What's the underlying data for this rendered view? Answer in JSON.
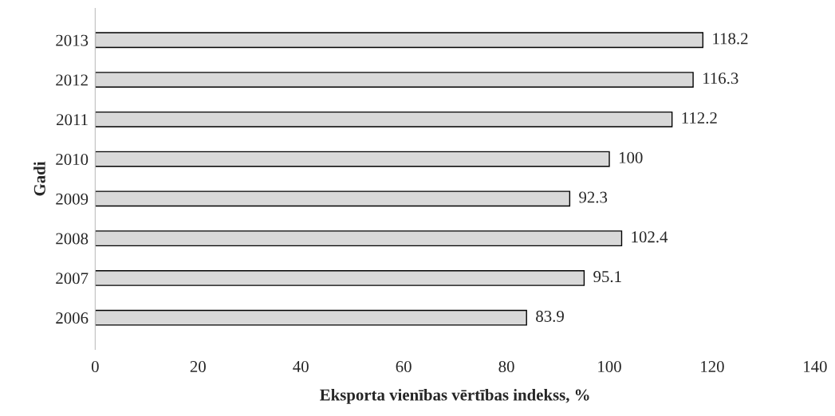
{
  "chart_data": {
    "type": "bar",
    "orientation": "horizontal",
    "xlabel": "Eksporta vienības vērtības indekss, %",
    "ylabel": "Gadi",
    "categories": [
      "2013",
      "2012",
      "2011",
      "2010",
      "2009",
      "2008",
      "2007",
      "2006"
    ],
    "values": [
      118.2,
      116.3,
      112.2,
      100,
      92.3,
      102.4,
      95.1,
      83.9
    ],
    "color": "#d9d9d9",
    "xlim": [
      0,
      140
    ],
    "xticks": [
      0,
      20,
      40,
      60,
      80,
      100,
      120,
      140
    ],
    "grid": false,
    "data_labels": true
  }
}
